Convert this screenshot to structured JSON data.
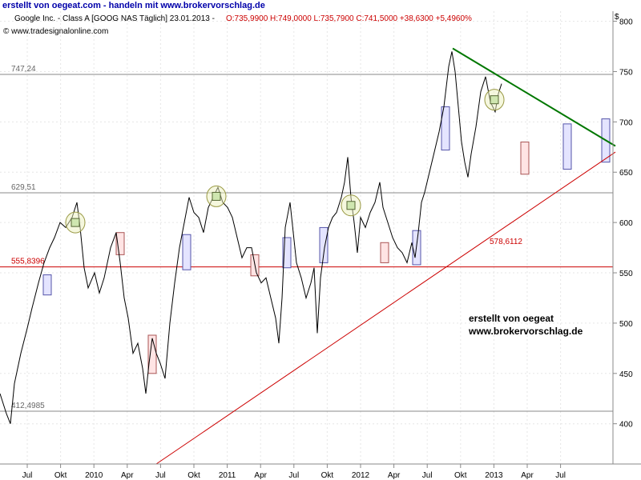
{
  "banner": "erstellt von oegeat.com - handeln mit www.brokervorschlag.de",
  "header": {
    "prefix": "Google Inc. - Class A [GOOG NAS  Täglich] 23.01.2013 - ",
    "ohlc": "O:735,9900 H:749,0000 L:735,7900 C:741,5000 +38,6300 +5,4960%",
    "source": "© www.tradesignalonline.com"
  },
  "currency": "$",
  "watermark": [
    "erstellt von oegeat",
    "www.brokervorschlag.de"
  ],
  "colors": {
    "price": "#000000",
    "grid": "#e6e6e6",
    "level": "#888888",
    "support": "#cc0000",
    "downtrend": "#007700",
    "uptrend": "#cc0000",
    "header_red": "#cc0000"
  },
  "chart_data": {
    "type": "line",
    "ylim": [
      360,
      810
    ],
    "yticks": [
      400,
      450,
      500,
      550,
      600,
      650,
      700,
      750,
      800
    ],
    "xticks": [
      "Jul",
      "Okt",
      "2010",
      "Apr",
      "Jul",
      "Okt",
      "2011",
      "Apr",
      "Jul",
      "Okt",
      "2012",
      "Apr",
      "Jul",
      "Okt",
      "2013",
      "Apr",
      "Jul"
    ],
    "series": [
      {
        "points": [
          [
            0,
            430
          ],
          [
            8,
            410
          ],
          [
            13,
            400
          ],
          [
            18,
            440
          ],
          [
            26,
            470
          ],
          [
            34,
            495
          ],
          [
            40,
            515
          ],
          [
            48,
            540
          ],
          [
            55,
            560
          ],
          [
            62,
            575
          ],
          [
            68,
            585
          ],
          [
            75,
            600
          ],
          [
            82,
            595
          ],
          [
            90,
            605
          ],
          [
            96,
            620
          ],
          [
            100,
            595
          ],
          [
            105,
            555
          ],
          [
            110,
            535
          ],
          [
            118,
            550
          ],
          [
            124,
            530
          ],
          [
            130,
            545
          ],
          [
            138,
            575
          ],
          [
            145,
            590
          ],
          [
            150,
            560
          ],
          [
            155,
            525
          ],
          [
            160,
            505
          ],
          [
            166,
            470
          ],
          [
            172,
            480
          ],
          [
            178,
            455
          ],
          [
            182,
            430
          ],
          [
            186,
            460
          ],
          [
            190,
            485
          ],
          [
            195,
            470
          ],
          [
            200,
            460
          ],
          [
            206,
            445
          ],
          [
            212,
            500
          ],
          [
            218,
            540
          ],
          [
            224,
            575
          ],
          [
            230,
            600
          ],
          [
            236,
            625
          ],
          [
            242,
            610
          ],
          [
            248,
            605
          ],
          [
            254,
            590
          ],
          [
            260,
            615
          ],
          [
            266,
            625
          ],
          [
            272,
            635
          ],
          [
            278,
            620
          ],
          [
            284,
            615
          ],
          [
            290,
            605
          ],
          [
            296,
            585
          ],
          [
            302,
            565
          ],
          [
            308,
            575
          ],
          [
            314,
            575
          ],
          [
            320,
            550
          ],
          [
            326,
            540
          ],
          [
            332,
            545
          ],
          [
            338,
            525
          ],
          [
            344,
            505
          ],
          [
            348,
            480
          ],
          [
            352,
            525
          ],
          [
            356,
            595
          ],
          [
            362,
            620
          ],
          [
            366,
            590
          ],
          [
            370,
            560
          ],
          [
            376,
            545
          ],
          [
            382,
            525
          ],
          [
            388,
            540
          ],
          [
            392,
            555
          ],
          [
            396,
            490
          ],
          [
            400,
            545
          ],
          [
            405,
            575
          ],
          [
            410,
            595
          ],
          [
            415,
            605
          ],
          [
            420,
            610
          ],
          [
            426,
            625
          ],
          [
            430,
            640
          ],
          [
            434,
            665
          ],
          [
            438,
            625
          ],
          [
            442,
            600
          ],
          [
            446,
            570
          ],
          [
            450,
            605
          ],
          [
            456,
            595
          ],
          [
            462,
            610
          ],
          [
            468,
            620
          ],
          [
            474,
            640
          ],
          [
            478,
            615
          ],
          [
            484,
            600
          ],
          [
            490,
            585
          ],
          [
            496,
            575
          ],
          [
            502,
            570
          ],
          [
            508,
            560
          ],
          [
            514,
            580
          ],
          [
            518,
            565
          ],
          [
            522,
            590
          ],
          [
            526,
            620
          ],
          [
            530,
            630
          ],
          [
            536,
            650
          ],
          [
            542,
            670
          ],
          [
            548,
            690
          ],
          [
            554,
            715
          ],
          [
            560,
            755
          ],
          [
            564,
            770
          ],
          [
            568,
            750
          ],
          [
            572,
            715
          ],
          [
            576,
            680
          ],
          [
            580,
            660
          ],
          [
            584,
            645
          ],
          [
            588,
            668
          ],
          [
            594,
            695
          ],
          [
            600,
            730
          ],
          [
            606,
            745
          ],
          [
            612,
            720
          ],
          [
            618,
            710
          ],
          [
            622,
            728
          ],
          [
            626,
            738
          ]
        ]
      }
    ],
    "levels": [
      {
        "label": "747,24",
        "value": 747.24
      },
      {
        "label": "629,51",
        "value": 629.51
      },
      {
        "label": "555,8396",
        "value": 555.8396,
        "support": true
      },
      {
        "label": "412,4985",
        "value": 412.4985
      }
    ],
    "downtrend": [
      [
        565,
        773
      ],
      [
        768,
        676
      ]
    ],
    "uptrend": [
      [
        195,
        360
      ],
      [
        768,
        670
      ]
    ],
    "uptrend_label": "578,6112",
    "boxes": [
      {
        "x": 59,
        "top": 548,
        "bottom": 528,
        "color": "blue"
      },
      {
        "x": 150,
        "top": 590,
        "bottom": 568,
        "color": "red"
      },
      {
        "x": 190,
        "top": 488,
        "bottom": 450,
        "color": "red"
      },
      {
        "x": 233,
        "top": 588,
        "bottom": 553,
        "color": "blue"
      },
      {
        "x": 318,
        "top": 568,
        "bottom": 547,
        "color": "red"
      },
      {
        "x": 358,
        "top": 585,
        "bottom": 555,
        "color": "blue"
      },
      {
        "x": 404,
        "top": 595,
        "bottom": 560,
        "color": "blue"
      },
      {
        "x": 480,
        "top": 580,
        "bottom": 560,
        "color": "red"
      },
      {
        "x": 520,
        "top": 592,
        "bottom": 558,
        "color": "blue"
      },
      {
        "x": 556,
        "top": 715,
        "bottom": 672,
        "color": "blue"
      },
      {
        "x": 655,
        "top": 680,
        "bottom": 648,
        "color": "red"
      },
      {
        "x": 708,
        "top": 698,
        "bottom": 653,
        "color": "blue"
      },
      {
        "x": 756,
        "top": 703,
        "bottom": 660,
        "color": "blue"
      }
    ],
    "circles": [
      {
        "x": 94,
        "y": 600
      },
      {
        "x": 270,
        "y": 626
      },
      {
        "x": 438,
        "y": 617
      },
      {
        "x": 617,
        "y": 722
      }
    ]
  }
}
